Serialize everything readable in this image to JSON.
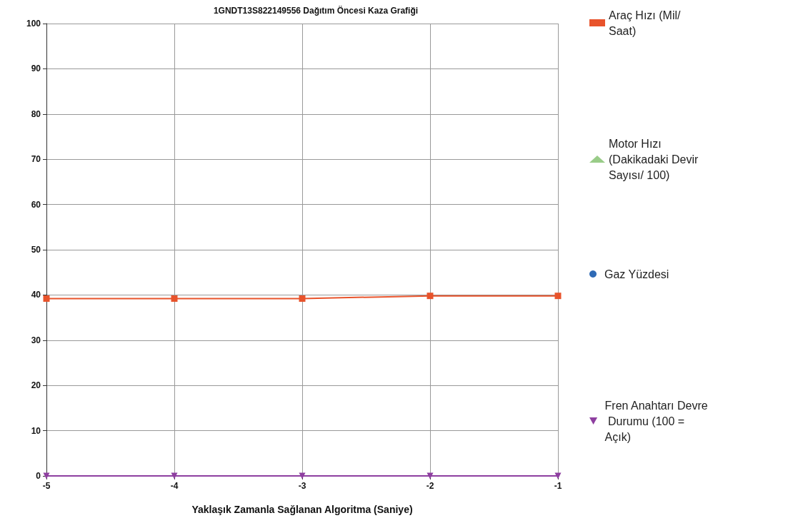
{
  "chart_data": {
    "type": "line",
    "title": "1GNDT13S822149556 Dağıtım Öncesi Kaza Grafiği",
    "xlabel": "Yaklaşık Zamanla Sağlanan Algoritma (Saniye)",
    "x": [
      -5,
      -4,
      -3,
      -2,
      -1
    ],
    "xlim": [
      -5,
      -1
    ],
    "xticks": [
      -5,
      -4,
      -3,
      -2,
      -1
    ],
    "ylim": [
      0,
      100
    ],
    "yticks": [
      0,
      10,
      20,
      30,
      40,
      50,
      60,
      70,
      80,
      90,
      100
    ],
    "grid": true,
    "legend": "right",
    "series": [
      {
        "name": "Araç Hızı (Mil/Saat)",
        "color": "#e8532b",
        "marker": "square",
        "values": [
          39.2,
          39.2,
          39.2,
          39.8,
          39.8
        ]
      },
      {
        "name": "Motor Hızı (Dakikadaki Devir Sayısı/ 100)",
        "color": "#99cc88",
        "marker": "triangle",
        "values": [
          null,
          null,
          null,
          null,
          null
        ]
      },
      {
        "name": "Gaz Yüzdesi",
        "color": "#2f6ab5",
        "marker": "circle",
        "values": [
          null,
          null,
          null,
          null,
          null
        ]
      },
      {
        "name": "Fren Anahtarı Devre Durumu (100 = Açık)",
        "color": "#8e3fa0",
        "marker": "triangle-down",
        "values": [
          0,
          0,
          0,
          0,
          0
        ]
      }
    ]
  }
}
